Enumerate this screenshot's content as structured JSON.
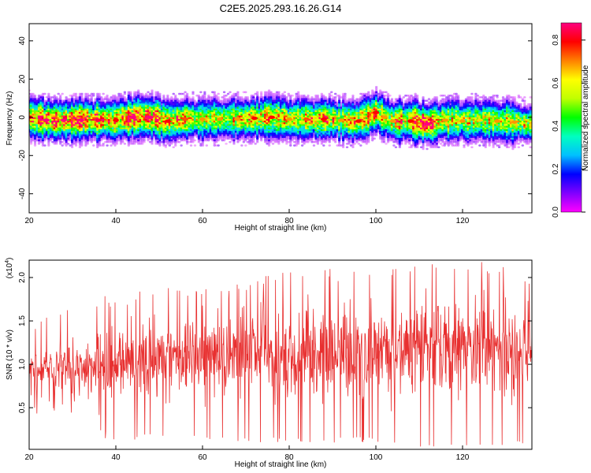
{
  "figure": {
    "title": "C2E5.2025.293.16.26.G14"
  },
  "chart_data": [
    {
      "type": "heatmap",
      "xlabel": "Height of straight line (km)",
      "ylabel": "Frequency (Hz)",
      "xlim": [
        20,
        136
      ],
      "ylim": [
        -50,
        49
      ],
      "xticks": [
        20,
        40,
        60,
        80,
        100,
        120
      ],
      "yticks": [
        -40,
        -20,
        0,
        20,
        40
      ],
      "grid": false,
      "colorbar": {
        "label": "Normalized spectral amplitude",
        "range": [
          0,
          0.88
        ],
        "ticks": [
          "0.0",
          "0.2",
          "0.4",
          "0.6",
          "0.8"
        ],
        "colors": [
          "#ff00ff",
          "#8000ff",
          "#0000ff",
          "#00c0ff",
          "#00ffc0",
          "#00ff00",
          "#c0ff00",
          "#ffff00",
          "#ff8000",
          "#ff0000",
          "#ff0080"
        ]
      },
      "ridge": {
        "x": [
          20,
          24,
          28,
          32,
          36,
          40,
          44,
          48,
          52,
          56,
          60,
          64,
          68,
          72,
          76,
          80,
          84,
          88,
          92,
          96,
          100,
          102,
          104,
          108,
          112,
          116,
          120,
          124,
          128,
          132,
          136
        ],
        "center_hz": [
          0,
          -1.5,
          -1.5,
          -1.5,
          -1.5,
          -1.5,
          0,
          0,
          -2,
          -1,
          -1,
          -1,
          -1,
          -0.5,
          0,
          -1,
          -1,
          -1,
          -1.5,
          -2,
          2.5,
          0,
          -2,
          -2,
          -3.5,
          -1.5,
          -2,
          -1.5,
          -2,
          -2.5,
          -4
        ],
        "peak_amplitude": [
          0.7,
          0.8,
          0.8,
          0.8,
          0.75,
          0.7,
          0.8,
          0.8,
          0.7,
          0.65,
          0.6,
          0.6,
          0.6,
          0.7,
          0.7,
          0.6,
          0.65,
          0.7,
          0.6,
          0.7,
          0.7,
          0.6,
          0.6,
          0.7,
          0.88,
          0.6,
          0.6,
          0.55,
          0.6,
          0.6,
          0.55
        ]
      }
    },
    {
      "type": "line",
      "xlabel": "Height of straight line (km)",
      "ylabel": "SNR (10 * v/v)",
      "y_multiplier": "(x10",
      "y_multiplier_exp": "4",
      "y_multiplier_close": ")",
      "xlim": [
        20,
        136
      ],
      "ylim": [
        0.02,
        2.2
      ],
      "xticks": [
        20,
        40,
        60,
        80,
        100,
        120
      ],
      "yticks": [
        0.5,
        1.0,
        1.5,
        2.0
      ],
      "yticklabels": [
        "0.5",
        "1.0",
        "1.5",
        "2.0"
      ],
      "grid": false,
      "series": [
        {
          "color": "#e83030",
          "envelope": {
            "x": [
              20,
              30,
              40,
              50,
              60,
              70,
              80,
              90,
              100,
              110,
              120,
              130,
              136
            ],
            "mean": [
              0.9,
              0.95,
              1.0,
              1.05,
              1.1,
              1.1,
              1.15,
              1.15,
              1.15,
              1.2,
              1.2,
              1.2,
              1.15
            ],
            "max": [
              1.45,
              1.8,
              1.8,
              1.9,
              1.95,
              2.0,
              2.2,
              2.1,
              2.1,
              2.15,
              2.2,
              2.2,
              2.0
            ],
            "min": [
              0.4,
              0.3,
              0.1,
              0.15,
              0.1,
              0.1,
              0.1,
              0.1,
              0.1,
              0.05,
              0.05,
              0.05,
              0.1
            ]
          }
        }
      ]
    }
  ]
}
